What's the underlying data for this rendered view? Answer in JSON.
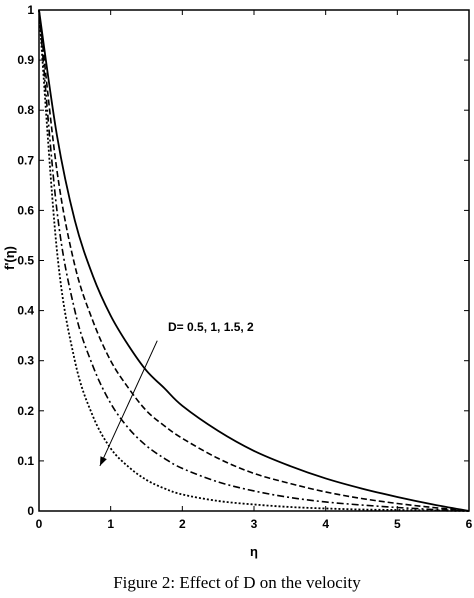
{
  "chart_data": {
    "type": "line",
    "title": "",
    "xlabel": "η",
    "ylabel": "f'(η)",
    "xlim": [
      0,
      6
    ],
    "ylim": [
      0,
      1
    ],
    "xticks": [
      0,
      1,
      2,
      3,
      4,
      5,
      6
    ],
    "yticks": [
      0,
      0.1,
      0.2,
      0.3,
      0.4,
      0.5,
      0.6,
      0.7,
      0.8,
      0.9,
      1
    ],
    "xtick_labels": [
      "0",
      "1",
      "2",
      "3",
      "4",
      "5",
      "6"
    ],
    "ytick_labels": [
      "0",
      "0.1",
      "0.2",
      "0.3",
      "0.4",
      "0.5",
      "0.6",
      "0.7",
      "0.8",
      "0.9",
      "1"
    ],
    "grid": false,
    "legend": "none",
    "annotation": {
      "text": "D= 0.5, 1, 1.5, 2",
      "arrow_from": [
        1.65,
        0.34
      ],
      "arrow_to": [
        0.85,
        0.09
      ]
    },
    "x": [
      0,
      0.25,
      0.5,
      0.75,
      1,
      1.25,
      1.5,
      1.75,
      2,
      2.5,
      3,
      3.5,
      4,
      4.5,
      5,
      5.5,
      6
    ],
    "series": [
      {
        "style": "solid",
        "values": [
          1.0,
          0.75,
          0.58,
          0.47,
          0.39,
          0.33,
          0.28,
          0.245,
          0.21,
          0.16,
          0.12,
          0.09,
          0.065,
          0.045,
          0.028,
          0.013,
          0.0
        ]
      },
      {
        "style": "dashed",
        "values": [
          1.0,
          0.68,
          0.49,
          0.38,
          0.3,
          0.245,
          0.2,
          0.17,
          0.145,
          0.105,
          0.075,
          0.055,
          0.038,
          0.025,
          0.015,
          0.007,
          0.0
        ]
      },
      {
        "style": "dashdot",
        "values": [
          1.0,
          0.6,
          0.4,
          0.29,
          0.215,
          0.165,
          0.13,
          0.105,
          0.085,
          0.058,
          0.04,
          0.027,
          0.018,
          0.012,
          0.007,
          0.003,
          0.0
        ]
      },
      {
        "style": "dotted",
        "values": [
          1.0,
          0.52,
          0.3,
          0.19,
          0.125,
          0.088,
          0.062,
          0.045,
          0.033,
          0.02,
          0.013,
          0.008,
          0.005,
          0.003,
          0.002,
          0.001,
          0.0
        ]
      }
    ]
  },
  "caption": "Figure 2: Effect of D on the velocity"
}
